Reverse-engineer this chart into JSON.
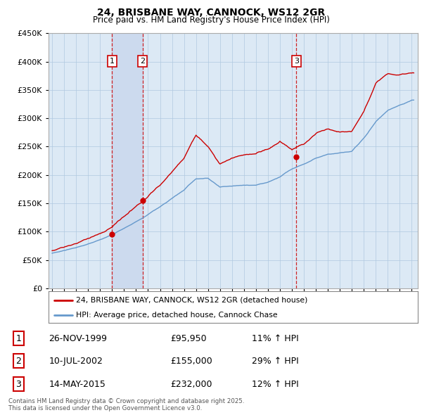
{
  "title": "24, BRISBANE WAY, CANNOCK, WS12 2GR",
  "subtitle": "Price paid vs. HM Land Registry's House Price Index (HPI)",
  "legend_line1": "24, BRISBANE WAY, CANNOCK, WS12 2GR (detached house)",
  "legend_line2": "HPI: Average price, detached house, Cannock Chase",
  "footer1": "Contains HM Land Registry data © Crown copyright and database right 2025.",
  "footer2": "This data is licensed under the Open Government Licence v3.0.",
  "transactions": [
    {
      "num": 1,
      "date": "26-NOV-1999",
      "price": "£95,950",
      "hpi": "11% ↑ HPI",
      "x": 2000.0
    },
    {
      "num": 2,
      "date": "10-JUL-2002",
      "price": "£155,000",
      "hpi": "29% ↑ HPI",
      "x": 2002.55
    },
    {
      "num": 3,
      "date": "14-MAY-2015",
      "price": "£232,000",
      "hpi": "12% ↑ HPI",
      "x": 2015.37
    }
  ],
  "transaction_prices": [
    95950,
    155000,
    232000
  ],
  "price_color": "#cc0000",
  "hpi_color": "#6699cc",
  "shade_color": "#ccdaee",
  "plot_bg_color": "#dce9f5",
  "background_color": "#ffffff",
  "ylim": [
    0,
    450000
  ],
  "xlim": [
    1994.7,
    2025.5
  ],
  "yticks": [
    0,
    50000,
    100000,
    150000,
    200000,
    250000,
    300000,
    350000,
    400000,
    450000
  ],
  "xticks": [
    1995,
    1996,
    1997,
    1998,
    1999,
    2000,
    2001,
    2002,
    2003,
    2004,
    2005,
    2006,
    2007,
    2008,
    2009,
    2010,
    2011,
    2012,
    2013,
    2014,
    2015,
    2016,
    2017,
    2018,
    2019,
    2020,
    2021,
    2022,
    2023,
    2024,
    2025
  ]
}
